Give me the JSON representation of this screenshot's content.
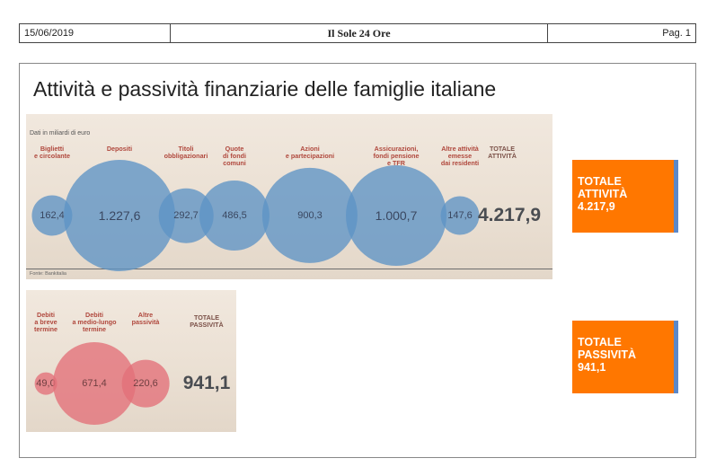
{
  "header": {
    "date": "15/06/2019",
    "newspaper": "Il Sole 24 Ore",
    "page": "Pag. 1"
  },
  "title": "Attività e passività finanziarie delle famiglie italiane",
  "assets_panel": {
    "note": "Dati in miliardi di euro",
    "source": "Fonte: Bankitalia",
    "total_label": "TOTALE\nATTIVITÀ",
    "total_value": "4.217,9"
  },
  "liabilities_panel": {
    "total_label": "TOTALE\nPASSIVITÀ",
    "total_value": "941,1"
  },
  "callouts": {
    "assets": {
      "line1": "TOTALE",
      "line2": "ATTIVITÀ",
      "value": "4.217,9"
    },
    "liabilities": {
      "line1": "TOTALE",
      "line2": "PASSIVITÀ",
      "value": "941,1"
    }
  },
  "colors": {
    "asset_bubble": "#5e94c5",
    "liability_bubble": "#e36f78",
    "callout_bg": "#ff7700",
    "callout_edge": "#5b88c9"
  },
  "chart_data": [
    {
      "type": "bubble",
      "categories": [
        "Biglietti\ne circolante",
        "Depositi",
        "Titoli\nobbligazionari",
        "Quote\ndi fondi\ncomuni",
        "Azioni\ne partecipazioni",
        "Assicurazioni,\nfondi pensione\ne TFR",
        "Altre attività\nemesse\ndai residenti"
      ],
      "values": [
        162.4,
        1227.6,
        292.7,
        486.5,
        900.3,
        1000.7,
        147.6
      ],
      "value_labels": [
        "162,4",
        "1.227,6",
        "292,7",
        "486,5",
        "900,3",
        "1.000,7",
        "147,6"
      ],
      "total": 4217.9,
      "total_label": "4.217,9"
    },
    {
      "type": "bubble",
      "categories": [
        "Debiti\na breve\ntermine",
        "Debiti\na medio-lungo\ntermine",
        "Altre\npassività"
      ],
      "values": [
        49.0,
        671.4,
        220.6
      ],
      "value_labels": [
        "49,0",
        "671,4",
        "220,6"
      ],
      "total": 941.1,
      "total_label": "941,1"
    }
  ]
}
